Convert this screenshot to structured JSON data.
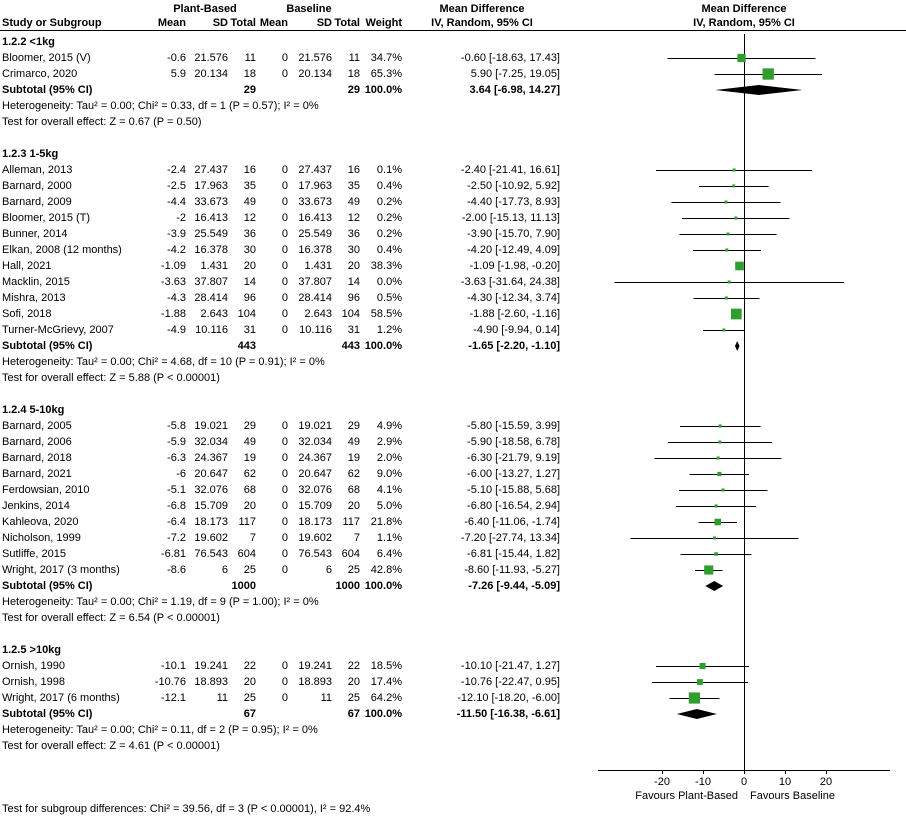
{
  "meta": {
    "background": "#ffffff",
    "marker_color": "#2f9e2f",
    "diamond_color": "#000000",
    "line_color": "#000000"
  },
  "header": {
    "group_plant": "Plant-Based",
    "group_baseline": "Baseline",
    "md_text": "Mean Difference",
    "md_plot": "Mean Difference",
    "study": "Study or Subgroup",
    "mean": "Mean",
    "sd": "SD",
    "total": "Total",
    "mean2": "Mean",
    "sd2": "SD",
    "total2": "Total",
    "weight": "Weight",
    "iv_text": "IV, Random, 95% CI",
    "iv_plot": "IV, Random, 95% CI"
  },
  "chart_data": {
    "type": "forest",
    "effect_measure": "Mean Difference",
    "method": "IV, Random, 95% CI",
    "axis": {
      "ticks": [
        -20,
        -10,
        0,
        10,
        20
      ],
      "min": -35.6,
      "max": 35.6
    },
    "favours_left": "Favours Plant-Based",
    "favours_right": "Favours Baseline",
    "subgroup_difference": "Test for subgroup differences: Chi² = 39.56, df = 3 (P < 0.00001), I² = 92.4%",
    "groups": [
      {
        "label": "1.2.2 <1kg",
        "studies": [
          {
            "name": "Bloomer, 2015 (V)",
            "p_mean": "-0.6",
            "p_sd": "21.576",
            "p_total": "11",
            "b_mean": "0",
            "b_sd": "21.576",
            "b_total": "11",
            "weight": "34.7%",
            "ci_text": "-0.60 [-18.63, 17.43]",
            "est": -0.6,
            "lo": -18.63,
            "hi": 17.43
          },
          {
            "name": "Crimarco, 2020",
            "p_mean": "5.9",
            "p_sd": "20.134",
            "p_total": "18",
            "b_mean": "0",
            "b_sd": "20.134",
            "b_total": "18",
            "weight": "65.3%",
            "ci_text": "5.90 [-7.25, 19.05]",
            "est": 5.9,
            "lo": -7.25,
            "hi": 19.05
          }
        ],
        "subtotal": {
          "label": "Subtotal (95% CI)",
          "p_total": "29",
          "b_total": "29",
          "weight": "100.0%",
          "ci_text": "3.64 [-6.98, 14.27]",
          "est": 3.64,
          "lo": -6.98,
          "hi": 14.27
        },
        "heterogeneity": "Heterogeneity: Tau² = 0.00; Chi² = 0.33, df = 1 (P = 0.57); I² = 0%",
        "test": "Test for overall effect: Z = 0.67 (P = 0.50)"
      },
      {
        "label": "1.2.3 1-5kg",
        "studies": [
          {
            "name": "Alleman, 2013",
            "p_mean": "-2.4",
            "p_sd": "27.437",
            "p_total": "16",
            "b_mean": "0",
            "b_sd": "27.437",
            "b_total": "16",
            "weight": "0.1%",
            "ci_text": "-2.40 [-21.41, 16.61]",
            "est": -2.4,
            "lo": -21.41,
            "hi": 16.61
          },
          {
            "name": "Barnard, 2000",
            "p_mean": "-2.5",
            "p_sd": "17.963",
            "p_total": "35",
            "b_mean": "0",
            "b_sd": "17.963",
            "b_total": "35",
            "weight": "0.4%",
            "ci_text": "-2.50 [-10.92, 5.92]",
            "est": -2.5,
            "lo": -10.92,
            "hi": 5.92
          },
          {
            "name": "Barnard, 2009",
            "p_mean": "-4.4",
            "p_sd": "33.673",
            "p_total": "49",
            "b_mean": "0",
            "b_sd": "33.673",
            "b_total": "49",
            "weight": "0.2%",
            "ci_text": "-4.40 [-17.73, 8.93]",
            "est": -4.4,
            "lo": -17.73,
            "hi": 8.93
          },
          {
            "name": "Bloomer, 2015 (T)",
            "p_mean": "-2",
            "p_sd": "16.413",
            "p_total": "12",
            "b_mean": "0",
            "b_sd": "16.413",
            "b_total": "12",
            "weight": "0.2%",
            "ci_text": "-2.00 [-15.13, 11.13]",
            "est": -2,
            "lo": -15.13,
            "hi": 11.13
          },
          {
            "name": "Bunner, 2014",
            "p_mean": "-3.9",
            "p_sd": "25.549",
            "p_total": "36",
            "b_mean": "0",
            "b_sd": "25.549",
            "b_total": "36",
            "weight": "0.2%",
            "ci_text": "-3.90 [-15.70, 7.90]",
            "est": -3.9,
            "lo": -15.7,
            "hi": 7.9
          },
          {
            "name": "Elkan, 2008 (12 months)",
            "p_mean": "-4.2",
            "p_sd": "16.378",
            "p_total": "30",
            "b_mean": "0",
            "b_sd": "16.378",
            "b_total": "30",
            "weight": "0.4%",
            "ci_text": "-4.20 [-12.49, 4.09]",
            "est": -4.2,
            "lo": -12.49,
            "hi": 4.09
          },
          {
            "name": "Hall, 2021",
            "p_mean": "-1.09",
            "p_sd": "1.431",
            "p_total": "20",
            "b_mean": "0",
            "b_sd": "1.431",
            "b_total": "20",
            "weight": "38.3%",
            "ci_text": "-1.09 [-1.98, -0.20]",
            "est": -1.09,
            "lo": -1.98,
            "hi": -0.2
          },
          {
            "name": "Macklin, 2015",
            "p_mean": "-3.63",
            "p_sd": "37.807",
            "p_total": "14",
            "b_mean": "0",
            "b_sd": "37.807",
            "b_total": "14",
            "weight": "0.0%",
            "ci_text": "-3.63 [-31.64, 24.38]",
            "est": -3.63,
            "lo": -31.64,
            "hi": 24.38
          },
          {
            "name": "Mishra, 2013",
            "p_mean": "-4.3",
            "p_sd": "28.414",
            "p_total": "96",
            "b_mean": "0",
            "b_sd": "28.414",
            "b_total": "96",
            "weight": "0.5%",
            "ci_text": "-4.30 [-12.34, 3.74]",
            "est": -4.3,
            "lo": -12.34,
            "hi": 3.74
          },
          {
            "name": "Sofi, 2018",
            "p_mean": "-1.88",
            "p_sd": "2.643",
            "p_total": "104",
            "b_mean": "0",
            "b_sd": "2.643",
            "b_total": "104",
            "weight": "58.5%",
            "ci_text": "-1.88 [-2.60, -1.16]",
            "est": -1.88,
            "lo": -2.6,
            "hi": -1.16
          },
          {
            "name": "Turner-McGrievy, 2007",
            "p_mean": "-4.9",
            "p_sd": "10.116",
            "p_total": "31",
            "b_mean": "0",
            "b_sd": "10.116",
            "b_total": "31",
            "weight": "1.2%",
            "ci_text": "-4.90 [-9.94, 0.14]",
            "est": -4.9,
            "lo": -9.94,
            "hi": 0.14
          }
        ],
        "subtotal": {
          "label": "Subtotal (95% CI)",
          "p_total": "443",
          "b_total": "443",
          "weight": "100.0%",
          "ci_text": "-1.65 [-2.20, -1.10]",
          "est": -1.65,
          "lo": -2.2,
          "hi": -1.1
        },
        "heterogeneity": "Heterogeneity: Tau² = 0.00; Chi² = 4.68, df = 10 (P = 0.91); I² = 0%",
        "test": "Test for overall effect: Z = 5.88 (P < 0.00001)"
      },
      {
        "label": "1.2.4 5-10kg",
        "studies": [
          {
            "name": "Barnard, 2005",
            "p_mean": "-5.8",
            "p_sd": "19.021",
            "p_total": "29",
            "b_mean": "0",
            "b_sd": "19.021",
            "b_total": "29",
            "weight": "4.9%",
            "ci_text": "-5.80 [-15.59, 3.99]",
            "est": -5.8,
            "lo": -15.59,
            "hi": 3.99
          },
          {
            "name": "Barnard, 2006",
            "p_mean": "-5.9",
            "p_sd": "32.034",
            "p_total": "49",
            "b_mean": "0",
            "b_sd": "32.034",
            "b_total": "49",
            "weight": "2.9%",
            "ci_text": "-5.90 [-18.58, 6.78]",
            "est": -5.9,
            "lo": -18.58,
            "hi": 6.78
          },
          {
            "name": "Barnard, 2018",
            "p_mean": "-6.3",
            "p_sd": "24.367",
            "p_total": "19",
            "b_mean": "0",
            "b_sd": "24.367",
            "b_total": "19",
            "weight": "2.0%",
            "ci_text": "-6.30 [-21.79, 9.19]",
            "est": -6.3,
            "lo": -21.79,
            "hi": 9.19
          },
          {
            "name": "Barnard, 2021",
            "p_mean": "-6",
            "p_sd": "20.647",
            "p_total": "62",
            "b_mean": "0",
            "b_sd": "20.647",
            "b_total": "62",
            "weight": "9.0%",
            "ci_text": "-6.00 [-13.27, 1.27]",
            "est": -6,
            "lo": -13.27,
            "hi": 1.27
          },
          {
            "name": "Ferdowsian, 2010",
            "p_mean": "-5.1",
            "p_sd": "32.076",
            "p_total": "68",
            "b_mean": "0",
            "b_sd": "32.076",
            "b_total": "68",
            "weight": "4.1%",
            "ci_text": "-5.10 [-15.88, 5.68]",
            "est": -5.1,
            "lo": -15.88,
            "hi": 5.68
          },
          {
            "name": "Jenkins, 2014",
            "p_mean": "-6.8",
            "p_sd": "15.709",
            "p_total": "20",
            "b_mean": "0",
            "b_sd": "15.709",
            "b_total": "20",
            "weight": "5.0%",
            "ci_text": "-6.80 [-16.54, 2.94]",
            "est": -6.8,
            "lo": -16.54,
            "hi": 2.94
          },
          {
            "name": "Kahleova, 2020",
            "p_mean": "-6.4",
            "p_sd": "18.173",
            "p_total": "117",
            "b_mean": "0",
            "b_sd": "18.173",
            "b_total": "117",
            "weight": "21.8%",
            "ci_text": "-6.40 [-11.06, -1.74]",
            "est": -6.4,
            "lo": -11.06,
            "hi": -1.74
          },
          {
            "name": "Nicholson, 1999",
            "p_mean": "-7.2",
            "p_sd": "19.602",
            "p_total": "7",
            "b_mean": "0",
            "b_sd": "19.602",
            "b_total": "7",
            "weight": "1.1%",
            "ci_text": "-7.20 [-27.74, 13.34]",
            "est": -7.2,
            "lo": -27.74,
            "hi": 13.34
          },
          {
            "name": "Sutliffe, 2015",
            "p_mean": "-6.81",
            "p_sd": "76.543",
            "p_total": "604",
            "b_mean": "0",
            "b_sd": "76.543",
            "b_total": "604",
            "weight": "6.4%",
            "ci_text": "-6.81 [-15.44, 1.82]",
            "est": -6.81,
            "lo": -15.44,
            "hi": 1.82
          },
          {
            "name": "Wright, 2017 (3 months)",
            "p_mean": "-8.6",
            "p_sd": "6",
            "p_total": "25",
            "b_mean": "0",
            "b_sd": "6",
            "b_total": "25",
            "weight": "42.8%",
            "ci_text": "-8.60 [-11.93, -5.27]",
            "est": -8.6,
            "lo": -11.93,
            "hi": -5.27
          }
        ],
        "subtotal": {
          "label": "Subtotal (95% CI)",
          "p_total": "1000",
          "b_total": "1000",
          "weight": "100.0%",
          "ci_text": "-7.26 [-9.44, -5.09]",
          "est": -7.26,
          "lo": -9.44,
          "hi": -5.09
        },
        "heterogeneity": "Heterogeneity: Tau² = 0.00; Chi² = 1.19, df = 9 (P = 1.00); I² = 0%",
        "test": "Test for overall effect: Z = 6.54 (P < 0.00001)"
      },
      {
        "label": "1.2.5 >10kg",
        "studies": [
          {
            "name": "Ornish, 1990",
            "p_mean": "-10.1",
            "p_sd": "19.241",
            "p_total": "22",
            "b_mean": "0",
            "b_sd": "19.241",
            "b_total": "22",
            "weight": "18.5%",
            "ci_text": "-10.10 [-21.47, 1.27]",
            "est": -10.1,
            "lo": -21.47,
            "hi": 1.27
          },
          {
            "name": "Ornish, 1998",
            "p_mean": "-10.76",
            "p_sd": "18.893",
            "p_total": "20",
            "b_mean": "0",
            "b_sd": "18.893",
            "b_total": "20",
            "weight": "17.4%",
            "ci_text": "-10.76 [-22.47, 0.95]",
            "est": -10.76,
            "lo": -22.47,
            "hi": 0.95
          },
          {
            "name": "Wright, 2017 (6 months)",
            "p_mean": "-12.1",
            "p_sd": "11",
            "p_total": "25",
            "b_mean": "0",
            "b_sd": "11",
            "b_total": "25",
            "weight": "64.2%",
            "ci_text": "-12.10 [-18.20, -6.00]",
            "est": -12.1,
            "lo": -18.2,
            "hi": -6
          }
        ],
        "subtotal": {
          "label": "Subtotal (95% CI)",
          "p_total": "67",
          "b_total": "67",
          "weight": "100.0%",
          "ci_text": "-11.50 [-16.38, -6.61]",
          "est": -11.5,
          "lo": -16.38,
          "hi": -6.61
        },
        "heterogeneity": "Heterogeneity: Tau² = 0.00; Chi² = 0.11, df = 2 (P = 0.95); I² = 0%",
        "test": "Test for overall effect: Z = 4.61 (P < 0.00001)"
      }
    ]
  }
}
